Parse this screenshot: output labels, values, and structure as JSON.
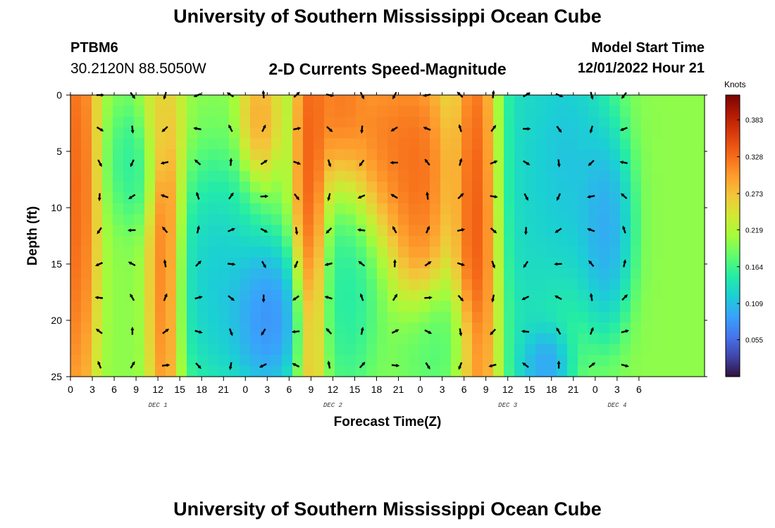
{
  "header": {
    "title": "University of Southern Mississippi Ocean Cube",
    "station": "PTBM6",
    "coordinates": "30.2120N  88.5050W",
    "subtitle": "2-D Currents Speed-Magnitude",
    "model_start_label": "Model Start Time",
    "model_start_value": "12/01/2022 Hour 21"
  },
  "footer": {
    "title": "University of Southern Mississippi Ocean Cube"
  },
  "colors": {
    "colormap": [
      "#30123b",
      "#4145ab",
      "#4675ed",
      "#39a2fc",
      "#1bcfd4",
      "#24eca6",
      "#61fc6c",
      "#a4fc3b",
      "#d1e834",
      "#f3c63a",
      "#fe9b2d",
      "#f56918",
      "#dc3e0d",
      "#b41a03",
      "#7a0403"
    ],
    "arrow": "#000000"
  },
  "chart_data": {
    "type": "heatmap",
    "title": "2-D Currents Speed-Magnitude",
    "xlabel": "Forecast Time(Z)",
    "ylabel": "Depth (ft)",
    "colorbar_label": "Knots",
    "colorbar_ticks": [
      "0.383",
      "0.328",
      "0.273",
      "0.219",
      "0.164",
      "0.109",
      "0.055"
    ],
    "colorbar_range": [
      0.0,
      0.42
    ],
    "x_range_hours": [
      0,
      87
    ],
    "x_ticks": [
      {
        "h": 0,
        "label": "0"
      },
      {
        "h": 3,
        "label": "3"
      },
      {
        "h": 6,
        "label": "6"
      },
      {
        "h": 9,
        "label": "9"
      },
      {
        "h": 12,
        "label": "12"
      },
      {
        "h": 15,
        "label": "15"
      },
      {
        "h": 18,
        "label": "18"
      },
      {
        "h": 21,
        "label": "21"
      },
      {
        "h": 24,
        "label": "0"
      },
      {
        "h": 27,
        "label": "3"
      },
      {
        "h": 30,
        "label": "6"
      },
      {
        "h": 33,
        "label": "9"
      },
      {
        "h": 36,
        "label": "12"
      },
      {
        "h": 39,
        "label": "15"
      },
      {
        "h": 42,
        "label": "18"
      },
      {
        "h": 45,
        "label": "21"
      },
      {
        "h": 48,
        "label": "0"
      },
      {
        "h": 51,
        "label": "3"
      },
      {
        "h": 54,
        "label": "6"
      },
      {
        "h": 57,
        "label": "9"
      },
      {
        "h": 60,
        "label": "12"
      },
      {
        "h": 63,
        "label": "15"
      },
      {
        "h": 66,
        "label": "18"
      },
      {
        "h": 69,
        "label": "21"
      },
      {
        "h": 72,
        "label": "0"
      },
      {
        "h": 75,
        "label": "3"
      },
      {
        "h": 78,
        "label": "6"
      }
    ],
    "day_labels": [
      {
        "h": 12,
        "label": "DEC 1"
      },
      {
        "h": 36,
        "label": "DEC 2"
      },
      {
        "h": 60,
        "label": "DEC 3"
      },
      {
        "h": 75,
        "label": "DEC 4"
      }
    ],
    "y_range": [
      0,
      25
    ],
    "y_ticks": [
      0,
      5,
      10,
      15,
      20,
      25
    ],
    "speed_features": [
      {
        "h": 1,
        "d": 8,
        "sh": 1.5,
        "sd": 14,
        "v": 0.38
      },
      {
        "h": 8.5,
        "d": 6,
        "sh": 1.8,
        "sd": 3,
        "v": 0.14
      },
      {
        "h": 13,
        "d": 16,
        "sh": 1.3,
        "sd": 9,
        "v": 0.38
      },
      {
        "h": 12.5,
        "d": 2,
        "sh": 1.6,
        "sd": 3,
        "v": 0.26
      },
      {
        "h": 20,
        "d": 17,
        "sh": 3.5,
        "sd": 6,
        "v": 0.09
      },
      {
        "h": 27,
        "d": 20,
        "sh": 3,
        "sd": 4,
        "v": 0.035
      },
      {
        "h": 26,
        "d": 2,
        "sh": 1.5,
        "sd": 3,
        "v": 0.32
      },
      {
        "h": 33,
        "d": 8,
        "sh": 1.3,
        "sd": 12,
        "v": 0.39
      },
      {
        "h": 37,
        "d": 1,
        "sh": 2,
        "sd": 4,
        "v": 0.36
      },
      {
        "h": 38,
        "d": 16,
        "sh": 2.4,
        "sd": 6,
        "v": 0.13
      },
      {
        "h": 43,
        "d": 4,
        "sh": 4,
        "sd": 5,
        "v": 0.36
      },
      {
        "h": 48,
        "d": 8,
        "sh": 2.2,
        "sd": 6,
        "v": 0.36
      },
      {
        "h": 56,
        "d": 11,
        "sh": 1.8,
        "sd": 13,
        "v": 0.4
      },
      {
        "h": 50,
        "d": 22,
        "sh": 3,
        "sd": 3,
        "v": 0.16
      },
      {
        "h": 62,
        "d": 8,
        "sh": 2.5,
        "sd": 13,
        "v": 0.11
      },
      {
        "h": 68,
        "d": 6,
        "sh": 3.5,
        "sd": 8,
        "v": 0.08
      },
      {
        "h": 73.5,
        "d": 12,
        "sh": 2,
        "sd": 5,
        "v": 0.06
      },
      {
        "h": 65,
        "d": 24,
        "sh": 2,
        "sd": 2,
        "v": 0.05
      }
    ],
    "speed_background": 0.2,
    "vector_columns_hours": [
      4,
      8.5,
      13,
      17.5,
      22,
      26.5,
      31,
      35.5,
      40,
      44.5,
      49,
      53.5,
      58,
      62.5,
      67,
      71.5,
      76
    ],
    "vector_rows_depth": [
      0,
      3,
      6,
      9,
      12,
      15,
      18,
      21,
      24
    ]
  }
}
